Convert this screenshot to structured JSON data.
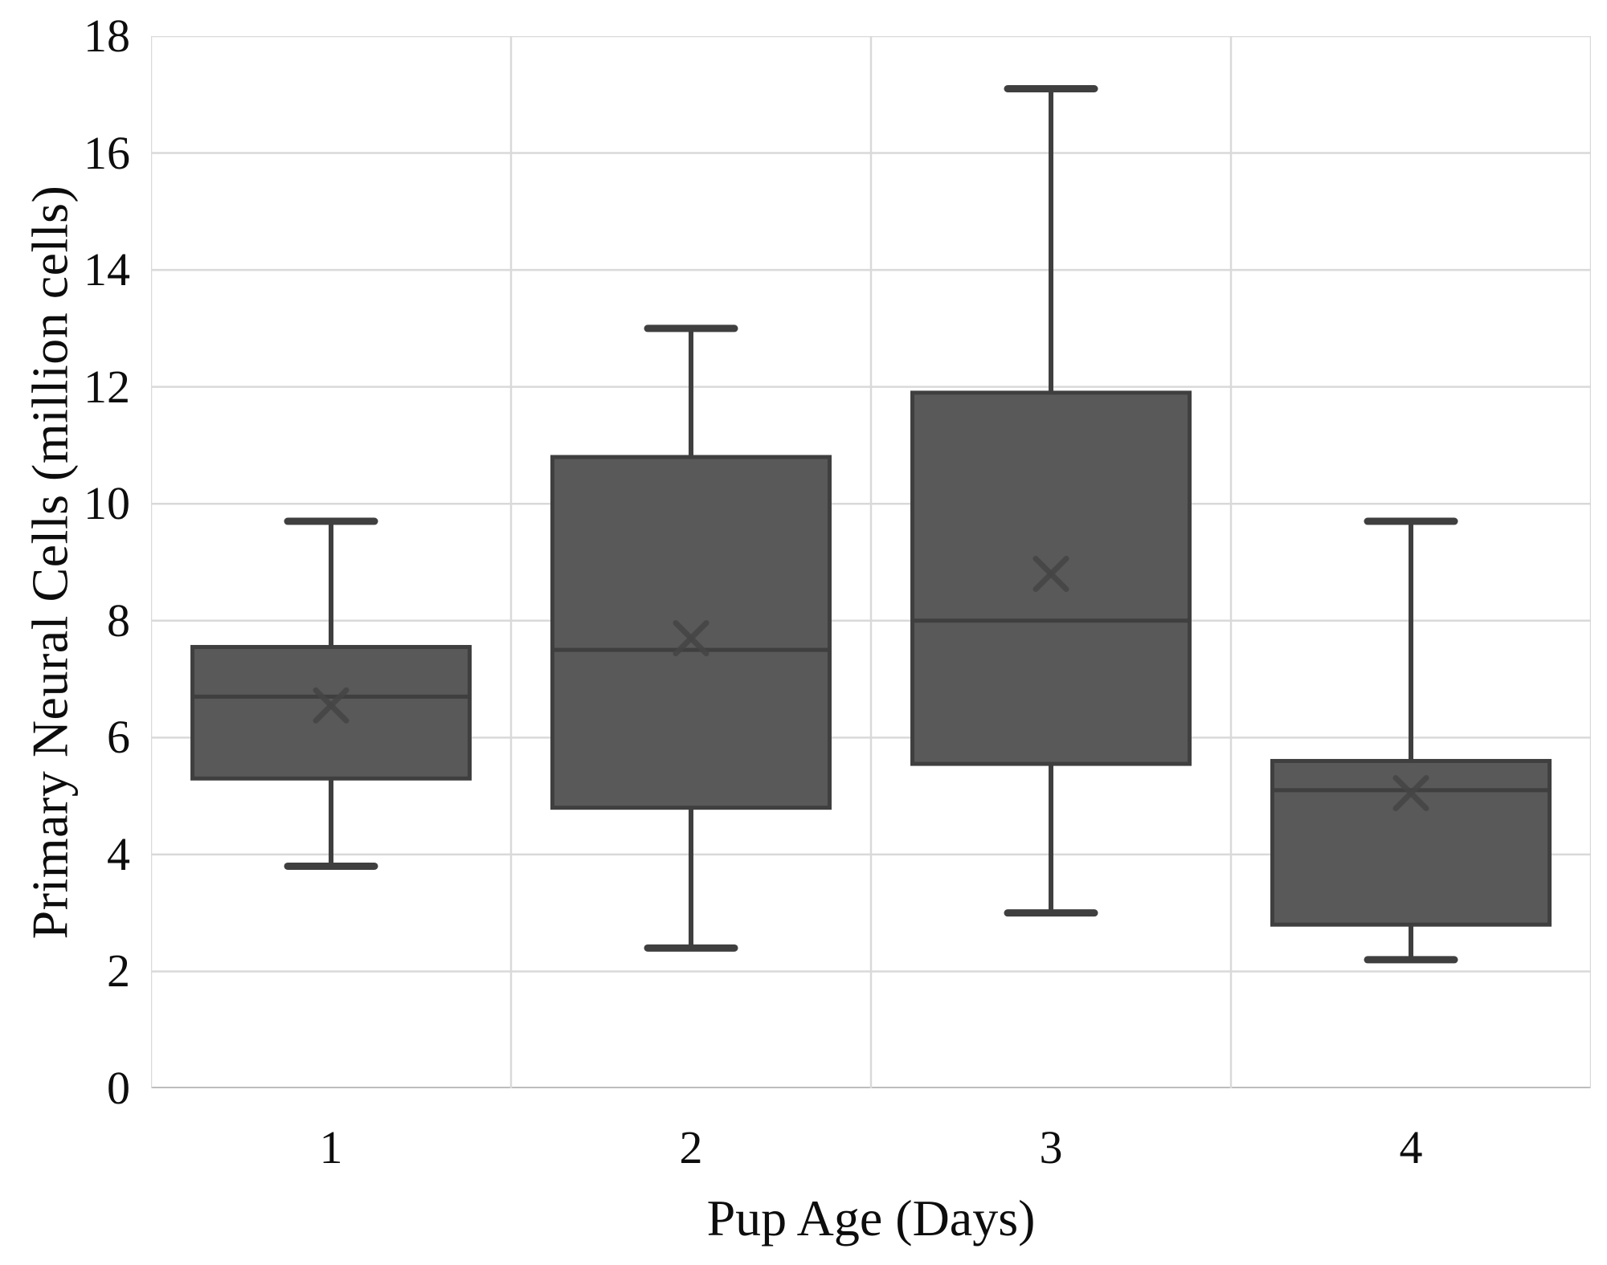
{
  "figure": {
    "background": "#ffffff"
  },
  "chart_data": {
    "type": "box",
    "title": "",
    "xlabel": "Pup Age (Days)",
    "ylabel": "Primary Neural Cells (million cells)",
    "categories": [
      "1",
      "2",
      "3",
      "4"
    ],
    "ylim": [
      0,
      18
    ],
    "yticks": [
      0,
      2,
      4,
      6,
      8,
      10,
      12,
      14,
      16,
      18
    ],
    "grid": {
      "horizontal": true,
      "vertical": true
    },
    "legend": "none",
    "mean_marker_shape": "x",
    "boxes": [
      {
        "category": "1",
        "min": 3.8,
        "q1": 5.3,
        "median": 6.7,
        "mean": 6.55,
        "q3": 7.55,
        "max": 9.7
      },
      {
        "category": "2",
        "min": 2.4,
        "q1": 4.8,
        "median": 7.5,
        "mean": 7.7,
        "q3": 10.8,
        "max": 13.0
      },
      {
        "category": "3",
        "min": 3.0,
        "q1": 5.55,
        "median": 8.0,
        "mean": 8.8,
        "q3": 11.9,
        "max": 17.1
      },
      {
        "category": "4",
        "min": 2.2,
        "q1": 2.8,
        "median": 5.1,
        "mean": 5.05,
        "q3": 5.6,
        "max": 9.7
      }
    ],
    "colors": {
      "box_fill": "#595959",
      "box_stroke": "#3f3f3f",
      "whisker": "#3f3f3f",
      "median_line": "#3f3f3f",
      "mean_marker": "#454545",
      "gridline": "#d9d9d9",
      "axis_line": "#bdbdbd",
      "text": "#0d0d0d"
    }
  }
}
